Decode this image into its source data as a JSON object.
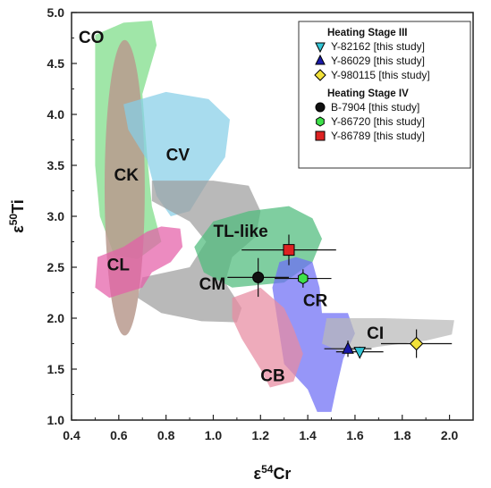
{
  "chart_data": {
    "type": "scatter",
    "xlabel": "ε54Cr",
    "ylabel": "ε50Ti",
    "xlim": [
      0.4,
      2.1
    ],
    "ylim": [
      1.0,
      5.0
    ],
    "x_ticks": [
      "0.4",
      "0.6",
      "0.8",
      "1.0",
      "1.2",
      "1.4",
      "1.6",
      "1.8",
      "2.0"
    ],
    "y_ticks": [
      "1.0",
      "1.5",
      "2.0",
      "2.5",
      "3.0",
      "3.5",
      "4.0",
      "4.5",
      "5.0"
    ],
    "grid": false,
    "legend_position": "top-right",
    "legend_groups": [
      {
        "heading": "Heating Stage III",
        "entries": [
          "Y-82162 [this study]",
          "Y-86029 [this study]",
          "Y-980115 [this study]"
        ]
      },
      {
        "heading": "Heating Stage IV",
        "entries": [
          "B-7904 [this study]",
          "Y-86720 [this study]",
          "Y-86789 [this study]"
        ]
      }
    ],
    "series": [
      {
        "name": "Y-82162 [this study]",
        "marker": "triangle-down",
        "color": "#33c6d6",
        "x": 1.62,
        "y": 1.67,
        "xerr": 0.1,
        "yerr": 0.05
      },
      {
        "name": "Y-86029 [this study]",
        "marker": "triangle-up",
        "color": "#1a1aa8",
        "x": 1.57,
        "y": 1.7,
        "xerr": 0.1,
        "yerr": 0.08
      },
      {
        "name": "Y-980115 [this study]",
        "marker": "diamond",
        "color": "#f2e23a",
        "x": 1.86,
        "y": 1.75,
        "xerr": 0.15,
        "yerr": 0.14
      },
      {
        "name": "B-7904 [this study]",
        "marker": "circle",
        "color": "#111111",
        "x": 1.19,
        "y": 2.4,
        "xerr": 0.13,
        "yerr": 0.19
      },
      {
        "name": "Y-86720 [this study]",
        "marker": "hexagon",
        "color": "#3ee04a",
        "x": 1.38,
        "y": 2.39,
        "xerr": 0.12,
        "yerr": 0.09
      },
      {
        "name": "Y-86789 [this study]",
        "marker": "square",
        "color": "#dd2222",
        "x": 1.32,
        "y": 2.67,
        "xerr": 0.2,
        "yerr": 0.15
      }
    ],
    "regions": [
      {
        "label": "CO",
        "color": "#7cdc86",
        "points": [
          [
            0.5,
            4.78
          ],
          [
            0.62,
            4.9
          ],
          [
            0.74,
            4.92
          ],
          [
            0.76,
            4.68
          ],
          [
            0.7,
            4.2
          ],
          [
            0.72,
            3.6
          ],
          [
            0.74,
            3.1
          ],
          [
            0.78,
            2.75
          ],
          [
            0.68,
            2.58
          ],
          [
            0.58,
            2.62
          ],
          [
            0.52,
            3.0
          ],
          [
            0.5,
            3.5
          ],
          [
            0.5,
            4.2
          ]
        ],
        "label_x": 0.43,
        "label_y": 4.7
      },
      {
        "label": "CK",
        "color": "#b99a8e",
        "ellipse": {
          "cx": 0.625,
          "cy": 3.28,
          "rx": 0.085,
          "ry": 1.45,
          "rotate": 0
        },
        "label_x": 0.58,
        "label_y": 3.35
      },
      {
        "label": "CV",
        "color": "#86cfe8",
        "points": [
          [
            0.62,
            4.1
          ],
          [
            0.8,
            4.22
          ],
          [
            0.98,
            4.15
          ],
          [
            1.07,
            3.95
          ],
          [
            1.05,
            3.58
          ],
          [
            0.98,
            3.35
          ],
          [
            0.9,
            3.05
          ],
          [
            0.82,
            3.0
          ],
          [
            0.76,
            3.2
          ],
          [
            0.72,
            3.55
          ],
          [
            0.64,
            3.85
          ]
        ],
        "label_x": 0.8,
        "label_y": 3.55
      },
      {
        "label": "CM",
        "color": "#9e9e9e",
        "points": [
          [
            0.74,
            3.35
          ],
          [
            1.0,
            3.35
          ],
          [
            1.15,
            3.3
          ],
          [
            1.2,
            3.05
          ],
          [
            1.18,
            2.8
          ],
          [
            1.08,
            2.6
          ],
          [
            1.05,
            2.35
          ],
          [
            1.12,
            2.1
          ],
          [
            1.1,
            1.96
          ],
          [
            0.95,
            1.97
          ],
          [
            0.78,
            2.05
          ],
          [
            0.68,
            2.2
          ],
          [
            0.7,
            2.4
          ],
          [
            0.9,
            2.5
          ],
          [
            0.97,
            2.75
          ],
          [
            0.9,
            2.95
          ],
          [
            0.74,
            3.15
          ]
        ],
        "label_x": 0.94,
        "label_y": 2.28
      },
      {
        "label": "CL",
        "color": "#e45ea8",
        "points": [
          [
            0.51,
            2.6
          ],
          [
            0.62,
            2.7
          ],
          [
            0.72,
            2.85
          ],
          [
            0.78,
            2.9
          ],
          [
            0.86,
            2.88
          ],
          [
            0.87,
            2.7
          ],
          [
            0.82,
            2.55
          ],
          [
            0.74,
            2.45
          ],
          [
            0.7,
            2.3
          ],
          [
            0.56,
            2.2
          ],
          [
            0.5,
            2.3
          ]
        ],
        "label_x": 0.55,
        "label_y": 2.47
      },
      {
        "label": "TL-like",
        "color": "#4dbb7c",
        "points": [
          [
            0.92,
            2.7
          ],
          [
            1.0,
            2.95
          ],
          [
            1.15,
            3.05
          ],
          [
            1.32,
            3.1
          ],
          [
            1.42,
            2.98
          ],
          [
            1.46,
            2.78
          ],
          [
            1.42,
            2.55
          ],
          [
            1.3,
            2.35
          ],
          [
            1.08,
            2.3
          ],
          [
            0.96,
            2.45
          ]
        ],
        "label_x": 1.0,
        "label_y": 2.8
      },
      {
        "label": "CR",
        "color": "#6e6ef5",
        "points": [
          [
            1.28,
            2.55
          ],
          [
            1.35,
            2.6
          ],
          [
            1.42,
            2.55
          ],
          [
            1.45,
            2.3
          ],
          [
            1.46,
            2.05
          ],
          [
            1.57,
            2.05
          ],
          [
            1.6,
            1.85
          ],
          [
            1.55,
            1.6
          ],
          [
            1.52,
            1.3
          ],
          [
            1.5,
            1.08
          ],
          [
            1.44,
            1.08
          ],
          [
            1.4,
            1.3
          ],
          [
            1.3,
            1.55
          ],
          [
            1.27,
            2.0
          ],
          [
            1.25,
            2.3
          ]
        ],
        "label_x": 1.38,
        "label_y": 2.12
      },
      {
        "label": "CB",
        "color": "#e78aa1",
        "points": [
          [
            1.08,
            2.2
          ],
          [
            1.2,
            2.3
          ],
          [
            1.3,
            2.1
          ],
          [
            1.34,
            1.9
          ],
          [
            1.38,
            1.65
          ],
          [
            1.34,
            1.38
          ],
          [
            1.24,
            1.32
          ],
          [
            1.2,
            1.5
          ],
          [
            1.12,
            1.8
          ],
          [
            1.08,
            2.0
          ]
        ],
        "label_x": 1.2,
        "label_y": 1.38
      },
      {
        "label": "CI",
        "color": "#b8b8b8",
        "points": [
          [
            1.48,
            2.0
          ],
          [
            1.72,
            2.0
          ],
          [
            2.02,
            1.98
          ],
          [
            2.01,
            1.84
          ],
          [
            1.9,
            1.78
          ],
          [
            1.7,
            1.72
          ],
          [
            1.55,
            1.66
          ],
          [
            1.46,
            1.75
          ]
        ],
        "label_x": 1.65,
        "label_y": 1.8
      }
    ]
  }
}
